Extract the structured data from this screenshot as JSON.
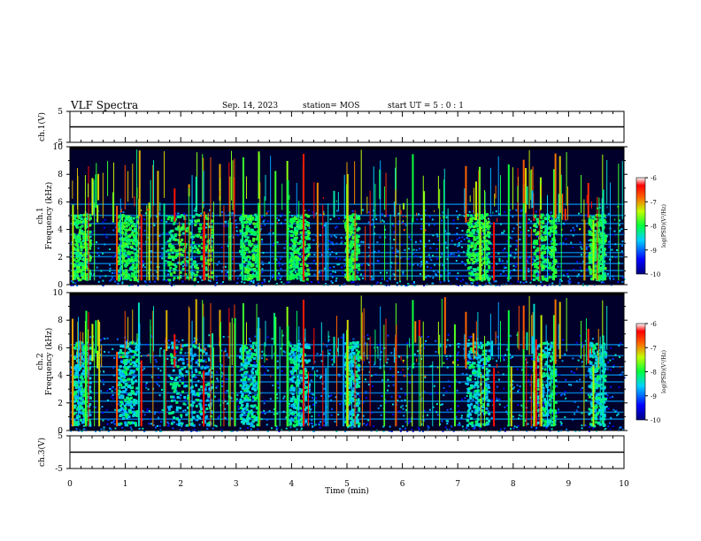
{
  "header": {
    "title": "VLF Spectra",
    "date": "Sep. 14, 2023",
    "station": "station= MOS",
    "start": "start  UT =  5 : 0  : 1"
  },
  "chart_data": [
    {
      "type": "line",
      "name": "ch1-waveform",
      "ylabel": "ch.1(V)",
      "ylim": [
        -5,
        5
      ],
      "yticks": [
        "5",
        "-5"
      ],
      "x": [
        0,
        10
      ],
      "values": [
        0,
        0
      ],
      "xlim": [
        0,
        10
      ]
    },
    {
      "type": "heatmap",
      "name": "ch1-spectrogram",
      "ylabel": "ch.1\nFrequency (kHz)",
      "ylim": [
        0,
        10
      ],
      "yticks": [
        "0",
        "2",
        "4",
        "6",
        "8",
        "10"
      ],
      "xlim": [
        0,
        10
      ],
      "bursts_min": [
        [
          0.05,
          0.35
        ],
        [
          0.85,
          1.2
        ],
        [
          1.75,
          2.55
        ],
        [
          3.05,
          3.4
        ],
        [
          3.95,
          4.3
        ],
        [
          4.95,
          5.2
        ],
        [
          7.15,
          7.55
        ],
        [
          8.35,
          8.75
        ],
        [
          9.35,
          9.65
        ]
      ],
      "colorbar": {
        "label": "log(PSD)(V²/Hz)",
        "range": [
          -10,
          -6
        ],
        "ticks": [
          "-6",
          "-7",
          "-8",
          "-9",
          "-10"
        ]
      }
    },
    {
      "type": "heatmap",
      "name": "ch2-spectrogram",
      "ylabel": "ch.2\nFrequency (kHz)",
      "ylim": [
        0,
        10
      ],
      "yticks": [
        "0",
        "2",
        "4",
        "6",
        "8",
        "10"
      ],
      "xlim": [
        0,
        10
      ],
      "colorbar": {
        "label": "log(PSD)(V²/Hz)",
        "range": [
          -10,
          -6
        ],
        "ticks": [
          "-6",
          "-7",
          "-8",
          "-9",
          "-10"
        ]
      }
    },
    {
      "type": "line",
      "name": "ch3-waveform",
      "ylabel": "ch.3(V)",
      "ylim": [
        -5,
        5
      ],
      "yticks": [
        "5",
        "-5"
      ],
      "x": [
        0,
        10
      ],
      "values": [
        0,
        0
      ],
      "xlim": [
        0,
        10
      ],
      "xlabel": "Time  (min)",
      "xticks": [
        "0",
        "1",
        "2",
        "3",
        "4",
        "5",
        "6",
        "7",
        "8",
        "9",
        "10"
      ]
    }
  ]
}
